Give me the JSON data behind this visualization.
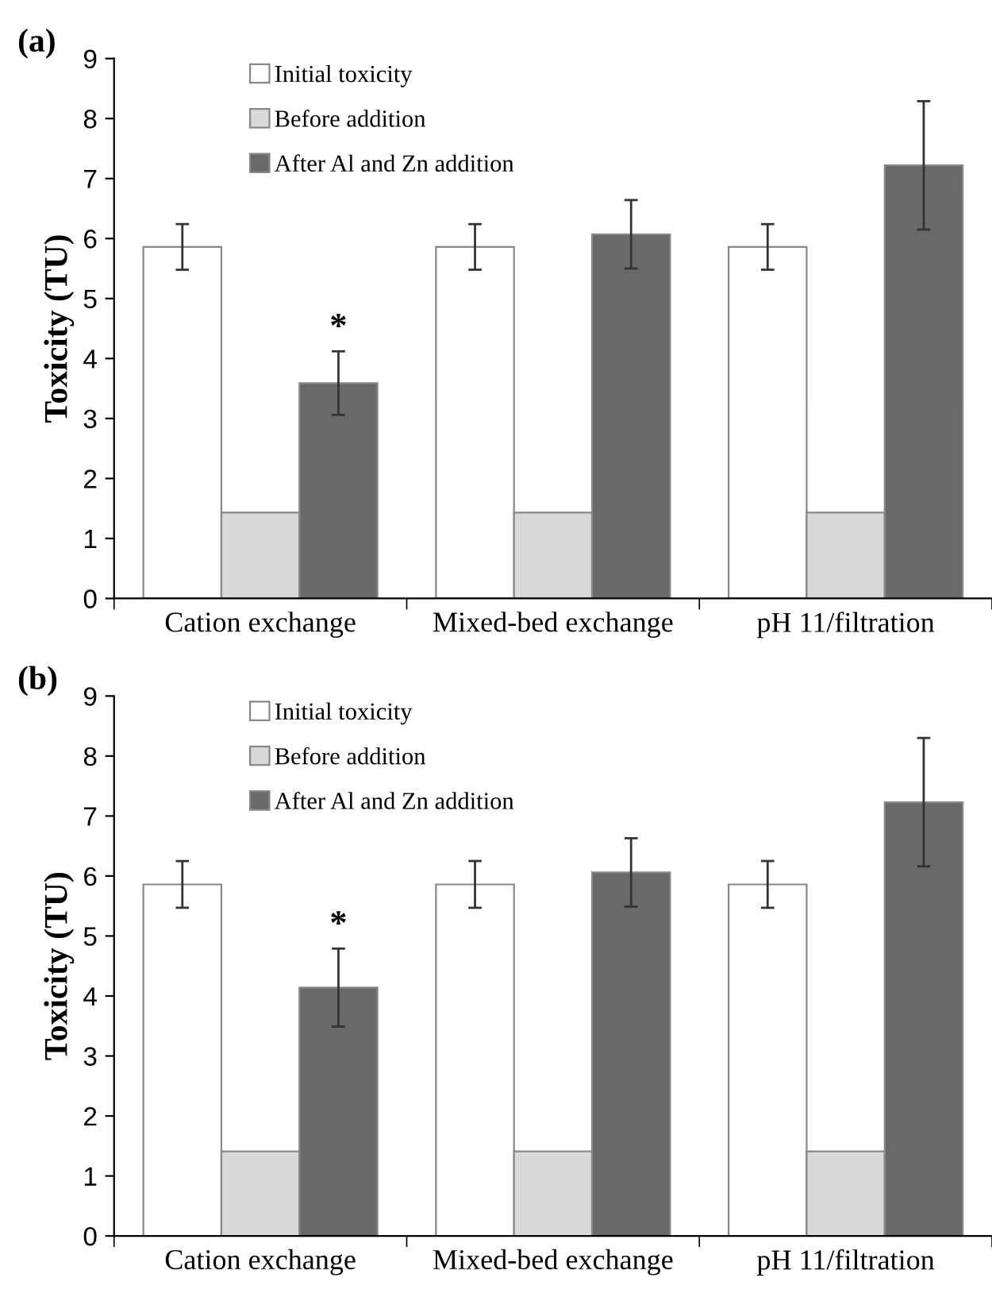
{
  "chart_data": [
    {
      "type": "bar",
      "title": "(a)",
      "ylabel": "Toxicity (TU)",
      "categories": [
        "Cation exchange",
        "Mixed-bed exchange",
        "pH 11/filtration"
      ],
      "series": [
        {
          "name": "Initial toxicity",
          "color": "#ffffff",
          "values": [
            5.86,
            5.86,
            5.86
          ],
          "errors": [
            0.38,
            0.38,
            0.38
          ]
        },
        {
          "name": "Before addition",
          "color": "#d9d9d9",
          "values": [
            1.43,
            1.43,
            1.43
          ]
        },
        {
          "name": "After Al and Zn addition",
          "color": "#696969",
          "values": [
            3.59,
            6.07,
            7.22
          ],
          "errors": [
            0.53,
            0.57,
            1.07
          ]
        }
      ],
      "ylim": [
        0,
        9
      ],
      "yticks": [
        0,
        1,
        2,
        3,
        4,
        5,
        6,
        7,
        8,
        9
      ],
      "grid": false,
      "legend": "top left",
      "annotations": [
        "*"
      ]
    },
    {
      "type": "bar",
      "title": "(b)",
      "ylabel": "Toxicity (TU)",
      "categories": [
        "Cation exchange",
        "Mixed-bed exchange",
        "pH 11/filtration"
      ],
      "series": [
        {
          "name": "Initial toxicity",
          "color": "#ffffff",
          "values": [
            5.86,
            5.86,
            5.86
          ],
          "errors": [
            0.39,
            0.39,
            0.39
          ]
        },
        {
          "name": "Before addition",
          "color": "#d9d9d9",
          "values": [
            1.41,
            1.41,
            1.41
          ]
        },
        {
          "name": "After Al and Zn addition",
          "color": "#696969",
          "values": [
            4.14,
            6.06,
            7.23
          ],
          "errors": [
            0.65,
            0.57,
            1.07
          ]
        }
      ],
      "ylim": [
        0,
        9
      ],
      "yticks": [
        0,
        1,
        2,
        3,
        4,
        5,
        6,
        7,
        8,
        9
      ],
      "grid": false,
      "legend": "top left",
      "annotations": [
        "*"
      ]
    }
  ]
}
